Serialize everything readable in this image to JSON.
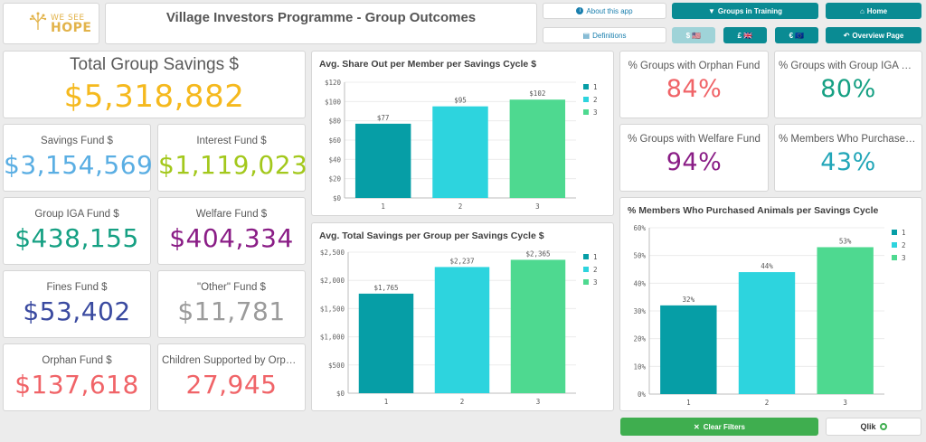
{
  "header": {
    "logo_line1": "WE SEE",
    "logo_line2": "HOPE",
    "title": "Village Investors Programme - Group Outcomes"
  },
  "nav": {
    "about": "About this app",
    "definitions": "Definitions",
    "groups_training": "Groups in Training",
    "home": "Home",
    "overview": "Overview Page",
    "currency_usd": "$ 🇺🇸",
    "currency_gbp": "£ 🇬🇧",
    "currency_eur": "€ 🇪🇺"
  },
  "kpis": {
    "total_savings": {
      "label": "Total Group Savings $",
      "value": "$5,318,882",
      "color": "#f5b91e"
    },
    "savings_fund": {
      "label": "Savings Fund $",
      "value": "$3,154,569",
      "color": "#5aaee3"
    },
    "interest_fund": {
      "label": "Interest Fund $",
      "value": "$1,119,023",
      "color": "#a3c81c"
    },
    "iga_fund": {
      "label": "Group IGA Fund $",
      "value": "$438,155",
      "color": "#16a083"
    },
    "welfare_fund": {
      "label": "Welfare Fund $",
      "value": "$404,334",
      "color": "#8a1d86"
    },
    "fines_fund": {
      "label": "Fines Fund $",
      "value": "$53,402",
      "color": "#3a4aa0"
    },
    "other_fund": {
      "label": "\"Other\" Fund $",
      "value": "$11,781",
      "color": "#9b9b9b"
    },
    "orphan_fund": {
      "label": "Orphan Fund $",
      "value": "$137,618",
      "color": "#f06468"
    },
    "children_supported": {
      "label": "Children Supported by Orpha...",
      "value": "27,945",
      "color": "#f06468"
    },
    "pct_orphan": {
      "label": "% Groups with Orphan Fund",
      "value": "84%",
      "color": "#f06468"
    },
    "pct_iga": {
      "label": "% Groups with Group IGA Fund",
      "value": "80%",
      "color": "#16a083"
    },
    "pct_welfare": {
      "label": "% Groups with Welfare Fund",
      "value": "94%",
      "color": "#8a1d86"
    },
    "pct_animals": {
      "label": "% Members Who Purchased A...",
      "value": "43%",
      "color": "#22a6b8"
    }
  },
  "chart_data": [
    {
      "type": "bar",
      "title": "Avg. Share Out per Member per Savings Cycle $",
      "categories": [
        "1",
        "2",
        "3"
      ],
      "values": [
        77,
        95,
        102
      ],
      "value_labels": [
        "$77",
        "$95",
        "$102"
      ],
      "ylim": [
        0,
        120
      ],
      "yticks": [
        0,
        20,
        40,
        60,
        80,
        100,
        120
      ],
      "ytick_labels": [
        "$0",
        "$20",
        "$40",
        "$60",
        "$80",
        "$100",
        "$120"
      ],
      "legend": [
        "1",
        "2",
        "3"
      ],
      "colors": [
        "#069ea6",
        "#2dd4de",
        "#4ed990"
      ]
    },
    {
      "type": "bar",
      "title": "Avg. Total Savings per Group per Savings Cycle $",
      "categories": [
        "1",
        "2",
        "3"
      ],
      "values": [
        1765,
        2237,
        2365
      ],
      "value_labels": [
        "$1,765",
        "$2,237",
        "$2,365"
      ],
      "ylim": [
        0,
        2500
      ],
      "yticks": [
        0,
        500,
        1000,
        1500,
        2000,
        2500
      ],
      "ytick_labels": [
        "$0",
        "$500",
        "$1,000",
        "$1,500",
        "$2,000",
        "$2,500"
      ],
      "legend": [
        "1",
        "2",
        "3"
      ],
      "colors": [
        "#069ea6",
        "#2dd4de",
        "#4ed990"
      ]
    },
    {
      "type": "bar",
      "title": "% Members Who Purchased Animals per Savings Cycle",
      "categories": [
        "1",
        "2",
        "3"
      ],
      "values": [
        32,
        44,
        53
      ],
      "value_labels": [
        "32%",
        "44%",
        "53%"
      ],
      "ylim": [
        0,
        60
      ],
      "yticks": [
        0,
        10,
        20,
        30,
        40,
        50,
        60
      ],
      "ytick_labels": [
        "0%",
        "10%",
        "20%",
        "30%",
        "40%",
        "50%",
        "60%"
      ],
      "legend": [
        "1",
        "2",
        "3"
      ],
      "colors": [
        "#069ea6",
        "#2dd4de",
        "#4ed990"
      ]
    }
  ],
  "footer": {
    "clear_filters": "Clear Filters",
    "qlik": "Qlik"
  }
}
